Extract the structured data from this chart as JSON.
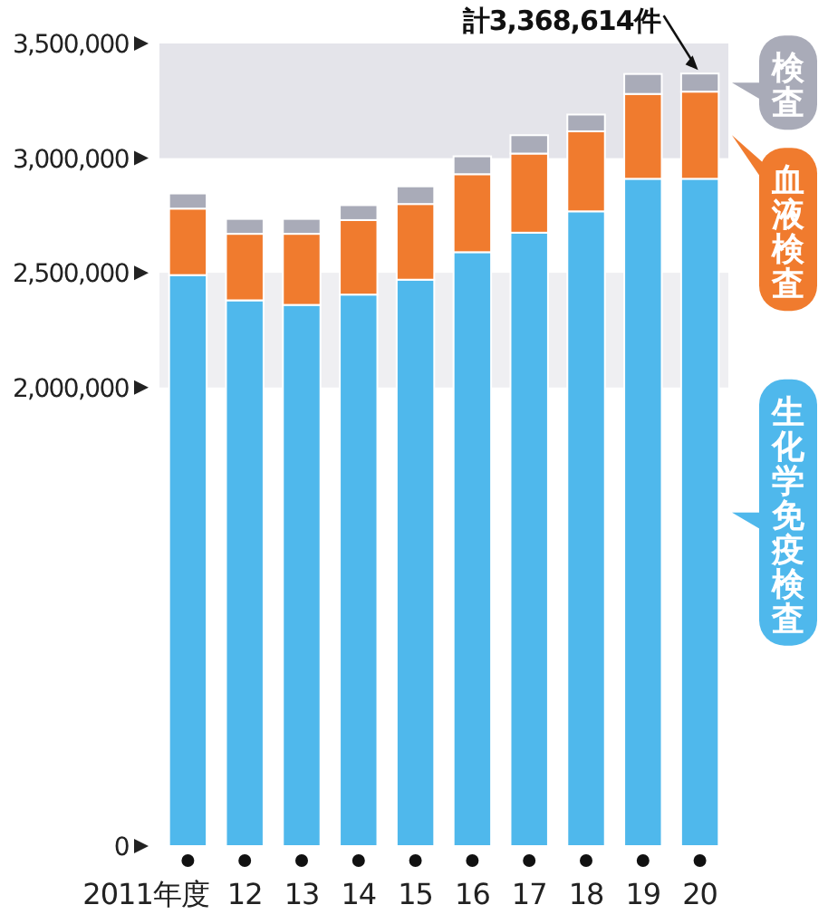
{
  "chart_data": {
    "type": "bar",
    "stacked": true,
    "grid": false,
    "categories": [
      "2011年度",
      "12",
      "13",
      "14",
      "15",
      "16",
      "17",
      "18",
      "19",
      "20"
    ],
    "series": [
      {
        "name": "生化学免疫検査",
        "color": "#4fb8ec",
        "values": [
          2490000,
          2380000,
          2360000,
          2405000,
          2470000,
          2590000,
          2675000,
          2768000,
          2910000,
          2910000
        ]
      },
      {
        "name": "血液検査",
        "color": "#f07b2e",
        "values": [
          290000,
          290000,
          310000,
          325000,
          330000,
          340000,
          345000,
          349000,
          370000,
          380000
        ]
      },
      {
        "name": "検査",
        "color": "#a9abb8",
        "values": [
          66000,
          65000,
          65000,
          65000,
          77000,
          78000,
          80000,
          73000,
          87000,
          79000
        ]
      }
    ],
    "ylim": [
      0,
      3500000
    ],
    "yticks": [
      {
        "value": 0,
        "label": "0"
      },
      {
        "value": 2000000,
        "label": "2,000,000"
      },
      {
        "value": 2500000,
        "label": "2,500,000"
      },
      {
        "value": 3000000,
        "label": "3,000,000"
      },
      {
        "value": 3500000,
        "label": "3,500,000"
      }
    ],
    "bands": [
      {
        "axis": "y",
        "from": 3000000,
        "to": 3500000,
        "color": "#e4e4ea"
      },
      {
        "axis": "y",
        "from": 2000000,
        "to": 2500000,
        "color": "#efeff2"
      }
    ],
    "annotations": [
      {
        "text": "計3,368,614件",
        "x": "20",
        "y": 3368614
      }
    ]
  }
}
